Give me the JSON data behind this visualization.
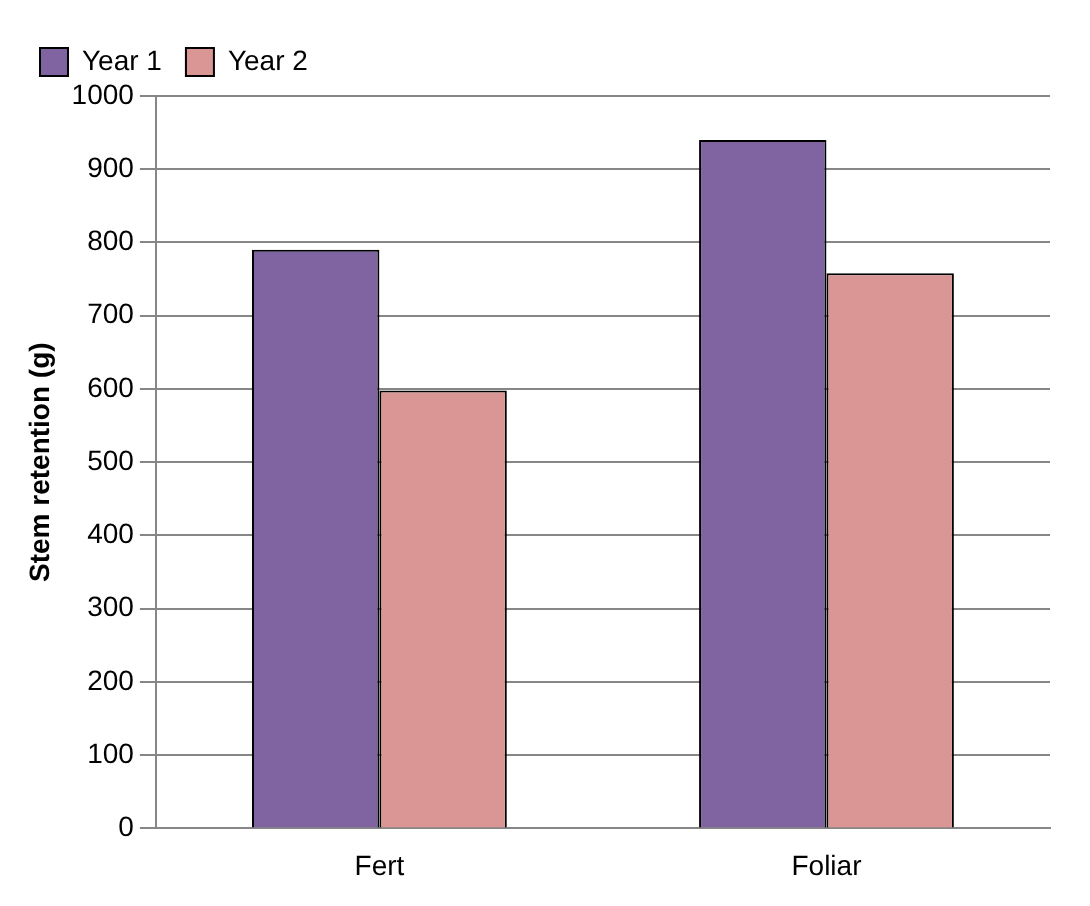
{
  "chart_data": {
    "type": "bar",
    "ylabel": "Stem retention (g)",
    "categories": [
      "Fert",
      "Foliar"
    ],
    "series": [
      {
        "name": "Year 1",
        "color": "#8064a2",
        "values": [
          790,
          940
        ]
      },
      {
        "name": "Year 2",
        "color": "#d99694",
        "values": [
          598,
          758
        ]
      }
    ],
    "ylim": [
      0,
      1000
    ],
    "yticks": [
      0,
      100,
      200,
      300,
      400,
      500,
      600,
      700,
      800,
      900,
      1000
    ],
    "grid": "y",
    "legend": "top left"
  }
}
